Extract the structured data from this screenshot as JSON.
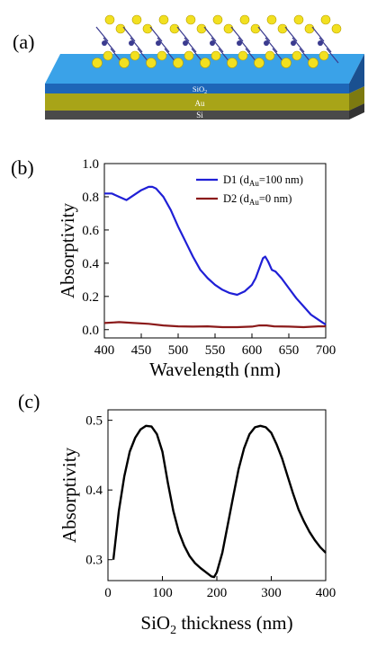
{
  "panel_a": {
    "label": "(a)",
    "layers": [
      "SiO2",
      "Au",
      "Si"
    ],
    "colors": {
      "sio2": "#3aa2e8",
      "au": "#a8a418",
      "si": "#4a4a4a",
      "atom_s": "#f2e020",
      "atom_mo": "#3b3b8f"
    }
  },
  "chart_data": [
    {
      "panel": "(b)",
      "type": "line",
      "title": "",
      "xlabel": "Wavelength (nm)",
      "ylabel": "Absorptivity",
      "xlim": [
        400,
        700
      ],
      "ylim": [
        -0.05,
        1.0
      ],
      "xticks": [
        400,
        450,
        500,
        550,
        600,
        650,
        700
      ],
      "yticks": [
        0.0,
        0.2,
        0.4,
        0.6,
        0.8,
        1.0
      ],
      "xtick_labels": [
        "400",
        "450",
        "500",
        "550",
        "600",
        "650",
        "700"
      ],
      "ytick_labels": [
        "0.0",
        "0.2",
        "0.4",
        "0.6",
        "0.8",
        "1.0"
      ],
      "legend_position": "top-right",
      "series": [
        {
          "name": "D1",
          "legend_label": "D1 (d",
          "legend_sub": "Au",
          "legend_tail": "=100 nm)",
          "color": "#1f1fd6",
          "x": [
            400,
            410,
            420,
            430,
            440,
            450,
            460,
            465,
            470,
            480,
            490,
            500,
            510,
            520,
            530,
            540,
            550,
            560,
            570,
            580,
            590,
            600,
            605,
            610,
            615,
            618,
            622,
            627,
            632,
            640,
            650,
            660,
            670,
            680,
            690,
            700
          ],
          "y": [
            0.82,
            0.82,
            0.8,
            0.78,
            0.81,
            0.84,
            0.86,
            0.86,
            0.85,
            0.8,
            0.72,
            0.62,
            0.53,
            0.44,
            0.36,
            0.31,
            0.27,
            0.24,
            0.22,
            0.21,
            0.23,
            0.27,
            0.31,
            0.37,
            0.43,
            0.44,
            0.41,
            0.36,
            0.35,
            0.31,
            0.25,
            0.19,
            0.14,
            0.09,
            0.06,
            0.03
          ]
        },
        {
          "name": "D2",
          "legend_label": "D2 (d",
          "legend_sub": "Au",
          "legend_tail": "=0 nm)",
          "color": "#8b1a1a",
          "x": [
            400,
            420,
            440,
            460,
            480,
            500,
            520,
            540,
            560,
            580,
            600,
            610,
            620,
            630,
            650,
            670,
            690,
            700
          ],
          "y": [
            0.04,
            0.045,
            0.04,
            0.035,
            0.025,
            0.02,
            0.018,
            0.02,
            0.015,
            0.015,
            0.018,
            0.025,
            0.025,
            0.02,
            0.018,
            0.015,
            0.02,
            0.02
          ]
        }
      ]
    },
    {
      "panel": "(c)",
      "type": "line",
      "title": "",
      "xlabel": "SiO",
      "xlabel_sub": "2",
      "xlabel_tail": " thickness (nm)",
      "ylabel": "Absorptivity",
      "xlim": [
        0,
        400
      ],
      "ylim": [
        0.27,
        0.515
      ],
      "xticks": [
        0,
        100,
        200,
        300,
        400
      ],
      "yticks": [
        0.3,
        0.4,
        0.5
      ],
      "xtick_labels": [
        "0",
        "100",
        "200",
        "300",
        "400"
      ],
      "ytick_labels": [
        "0.3",
        "0.4",
        "0.5"
      ],
      "series": [
        {
          "name": "",
          "color": "#000000",
          "x": [
            10,
            20,
            30,
            40,
            50,
            60,
            70,
            80,
            90,
            100,
            110,
            120,
            130,
            140,
            150,
            160,
            170,
            180,
            190,
            195,
            200,
            210,
            220,
            230,
            240,
            250,
            260,
            270,
            280,
            290,
            300,
            310,
            320,
            330,
            340,
            350,
            360,
            370,
            380,
            390,
            400
          ],
          "y": [
            0.3,
            0.37,
            0.42,
            0.455,
            0.475,
            0.487,
            0.492,
            0.491,
            0.48,
            0.455,
            0.41,
            0.37,
            0.34,
            0.32,
            0.305,
            0.295,
            0.288,
            0.282,
            0.276,
            0.275,
            0.282,
            0.31,
            0.35,
            0.39,
            0.43,
            0.46,
            0.48,
            0.49,
            0.492,
            0.49,
            0.482,
            0.465,
            0.445,
            0.42,
            0.395,
            0.372,
            0.355,
            0.34,
            0.328,
            0.318,
            0.31
          ]
        }
      ]
    }
  ]
}
